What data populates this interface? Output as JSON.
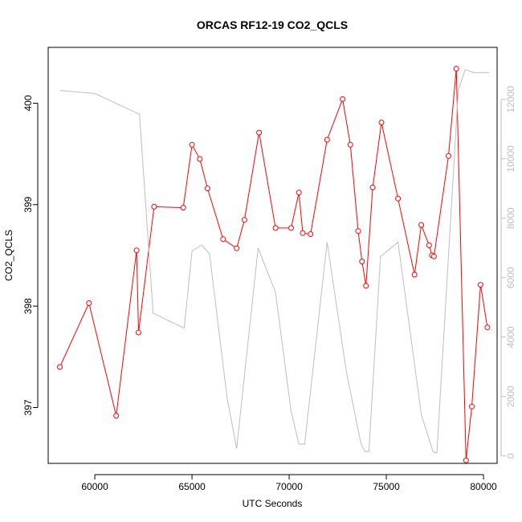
{
  "chart_data": {
    "type": "line",
    "title": "ORCAS RF12-19 CO2_QCLS",
    "xlabel": "UTC Seconds",
    "ylabel": "CO2_QCLS",
    "xlim": [
      57600,
      80700
    ],
    "ylim": [
      396.45,
      400.55
    ],
    "y2lim": [
      -250,
      13750
    ],
    "xticks": [
      60000,
      65000,
      70000,
      75000,
      80000
    ],
    "yticks": [
      397,
      398,
      399,
      400
    ],
    "y2ticks": [
      0,
      2000,
      4000,
      6000,
      8000,
      10000,
      12000
    ],
    "series": [
      {
        "axis": "left",
        "color": "#ff0000",
        "style": "line+open-circles",
        "x": [
          58200,
          59700,
          61100,
          62150,
          62250,
          63050,
          64550,
          65000,
          65400,
          65800,
          66600,
          67300,
          67700,
          68450,
          69300,
          70100,
          70500,
          70700,
          71100,
          71950,
          72750,
          73150,
          73550,
          73750,
          73950,
          74300,
          74750,
          75600,
          76450,
          76800,
          77200,
          77350,
          77450,
          78200,
          78600,
          79100,
          79400,
          79850,
          80200
        ],
        "y": [
          397.4,
          398.03,
          396.92,
          398.55,
          397.74,
          398.98,
          398.97,
          399.59,
          399.45,
          399.16,
          398.66,
          398.57,
          398.85,
          399.71,
          398.77,
          398.77,
          399.12,
          398.72,
          398.71,
          399.64,
          400.04,
          399.59,
          398.74,
          398.44,
          398.2,
          399.17,
          399.81,
          399.06,
          398.31,
          398.8,
          398.6,
          398.5,
          398.49,
          399.48,
          400.34,
          396.48,
          397.01,
          398.21,
          397.79
        ]
      },
      {
        "axis": "right",
        "color": "#bebebe",
        "style": "line",
        "x": [
          58200,
          60000,
          62300,
          63000,
          64600,
          65000,
          65500,
          65900,
          66800,
          67300,
          68400,
          69300,
          70100,
          70500,
          70800,
          71950,
          72950,
          73700,
          73900,
          74100,
          74700,
          75600,
          76800,
          77400,
          77600,
          78700,
          79050,
          79500,
          80300
        ],
        "y": [
          12300,
          12200,
          11500,
          4800,
          4300,
          6900,
          7100,
          6800,
          2000,
          250,
          7000,
          5500,
          1500,
          400,
          400,
          7200,
          2800,
          400,
          150,
          150,
          6700,
          7200,
          1400,
          150,
          100,
          12300,
          13000,
          12900,
          12900
        ]
      }
    ]
  }
}
